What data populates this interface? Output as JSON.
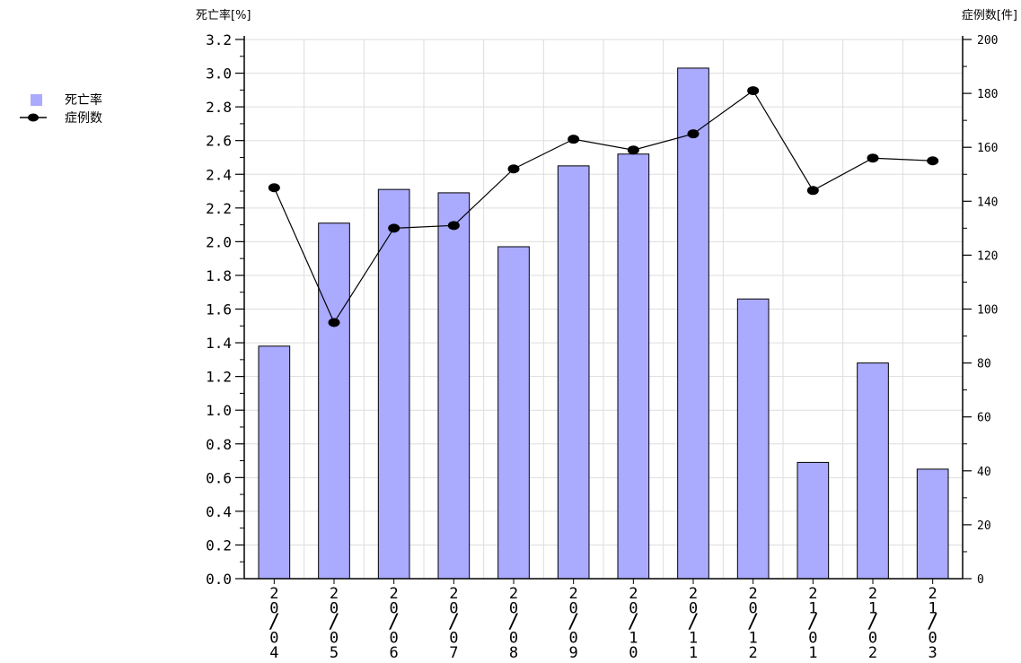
{
  "chart_data": {
    "type": "bar",
    "left_axis_title": "死亡率[%]",
    "right_axis_title": "症例数[件]",
    "categories": [
      "20/04",
      "20/05",
      "20/06",
      "20/07",
      "20/08",
      "20/09",
      "20/10",
      "20/11",
      "20/12",
      "21/01",
      "21/02",
      "21/03"
    ],
    "series": [
      {
        "name": "死亡率",
        "type": "bar",
        "axis": "left",
        "color": "#aaaaff",
        "values": [
          1.38,
          2.11,
          2.31,
          2.29,
          1.97,
          2.45,
          2.52,
          3.03,
          1.66,
          0.69,
          1.28,
          0.65
        ]
      },
      {
        "name": "症例数",
        "type": "line",
        "axis": "right",
        "color": "#000000",
        "values": [
          145,
          95,
          130,
          131,
          152,
          163,
          159,
          165,
          181,
          144,
          156,
          155
        ]
      }
    ],
    "left_axis": {
      "min": 0,
      "max": 3.2,
      "step": 0.2,
      "tick_labels": [
        "0.0",
        "0.2",
        "0.4",
        "0.6",
        "0.8",
        "1.0",
        "1.2",
        "1.4",
        "1.6",
        "1.8",
        "2.0",
        "2.2",
        "2.4",
        "2.6",
        "2.8",
        "3.0",
        "3.2"
      ]
    },
    "right_axis": {
      "min": 0,
      "max": 200,
      "step": 20,
      "tick_labels": [
        "0",
        "20",
        "40",
        "60",
        "80",
        "100",
        "120",
        "140",
        "160",
        "180",
        "200"
      ]
    },
    "grid": true,
    "legend_position": "left"
  }
}
